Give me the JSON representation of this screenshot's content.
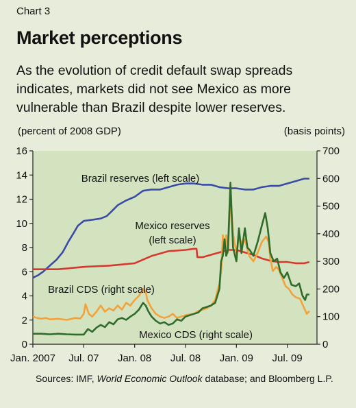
{
  "header": {
    "kicker": "Chart 3",
    "title": "Market perceptions",
    "subtitle": "As the evolution of credit default swap spreads indicates, markets did not see Mexico as more vulnerable than Brazil despite lower reserves."
  },
  "units": {
    "left": "(percent of 2008 GDP)",
    "right": "(basis points)"
  },
  "source": {
    "prefix": "Sources: IMF,",
    "italic": "World Economic Outlook",
    "suffix": "database; and Bloomberg L.P."
  },
  "colors": {
    "plot_bg": "#d3e3c0",
    "brazil_reserves": "#3a4ba6",
    "mexico_reserves": "#d7382e",
    "brazil_cds": "#f2a23a",
    "mexico_cds": "#2f6b2a",
    "axis": "#222222"
  },
  "chart_data": {
    "type": "line",
    "x_range": [
      "2007-01",
      "2009-10"
    ],
    "x_ticks": [
      {
        "label": "Jan. 2007",
        "month": 0
      },
      {
        "label": "Jul. 07",
        "month": 6
      },
      {
        "label": "Jan. 08",
        "month": 12
      },
      {
        "label": "Jul. 08",
        "month": 18
      },
      {
        "label": "Jan. 09",
        "month": 24
      },
      {
        "label": "Jul. 09",
        "month": 30
      }
    ],
    "y_left": {
      "label": "(percent of 2008 GDP)",
      "lim": [
        0,
        16
      ],
      "ticks": [
        0,
        2,
        4,
        6,
        8,
        10,
        12,
        14,
        16
      ]
    },
    "y_right": {
      "label": "(basis points)",
      "lim": [
        0,
        700
      ],
      "ticks": [
        0,
        100,
        200,
        300,
        400,
        500,
        600,
        700
      ]
    },
    "series": [
      {
        "name": "Brazil reserves (left scale)",
        "axis": "left",
        "color_key": "brazil_reserves",
        "points": [
          [
            0,
            5.5
          ],
          [
            0.6,
            5.7
          ],
          [
            1.2,
            6.0
          ],
          [
            2,
            6.5
          ],
          [
            2.8,
            7.0
          ],
          [
            3.5,
            7.6
          ],
          [
            4.2,
            8.5
          ],
          [
            4.8,
            9.2
          ],
          [
            5.3,
            9.8
          ],
          [
            6,
            10.2
          ],
          [
            7,
            10.3
          ],
          [
            8,
            10.4
          ],
          [
            8.7,
            10.6
          ],
          [
            9.3,
            11.0
          ],
          [
            10,
            11.5
          ],
          [
            11,
            11.9
          ],
          [
            12,
            12.2
          ],
          [
            13,
            12.7
          ],
          [
            14,
            12.8
          ],
          [
            15,
            12.8
          ],
          [
            16,
            13.0
          ],
          [
            17,
            13.2
          ],
          [
            18,
            13.3
          ],
          [
            19,
            13.3
          ],
          [
            20,
            13.2
          ],
          [
            21,
            13.2
          ],
          [
            22,
            13.0
          ],
          [
            23,
            12.9
          ],
          [
            24,
            12.9
          ],
          [
            25,
            12.8
          ],
          [
            26,
            12.8
          ],
          [
            27,
            13.0
          ],
          [
            28,
            13.1
          ],
          [
            29,
            13.1
          ],
          [
            30,
            13.3
          ],
          [
            31,
            13.5
          ],
          [
            32,
            13.7
          ],
          [
            32.6,
            13.7
          ]
        ]
      },
      {
        "name": "Mexico reserves (left scale)",
        "axis": "left",
        "color_key": "mexico_reserves",
        "points": [
          [
            0,
            6.2
          ],
          [
            3,
            6.2
          ],
          [
            6,
            6.4
          ],
          [
            9,
            6.5
          ],
          [
            12,
            6.7
          ],
          [
            14,
            7.3
          ],
          [
            16,
            7.7
          ],
          [
            18,
            7.8
          ],
          [
            19,
            7.9
          ],
          [
            19.3,
            7.9
          ],
          [
            19.4,
            7.2
          ],
          [
            20,
            7.2
          ],
          [
            21,
            7.4
          ],
          [
            22,
            7.6
          ],
          [
            23,
            7.8
          ],
          [
            24,
            7.8
          ],
          [
            25,
            7.6
          ],
          [
            26,
            7.4
          ],
          [
            27,
            7.1
          ],
          [
            28,
            6.9
          ],
          [
            29,
            6.8
          ],
          [
            30,
            6.8
          ],
          [
            31,
            6.7
          ],
          [
            32,
            6.7
          ],
          [
            32.6,
            6.8
          ]
        ]
      },
      {
        "name": "Brazil CDS (right scale)",
        "axis": "right",
        "color_key": "brazil_cds",
        "points": [
          [
            0,
            100
          ],
          [
            0.5,
            95
          ],
          [
            1,
            92
          ],
          [
            1.5,
            95
          ],
          [
            2,
            90
          ],
          [
            3,
            92
          ],
          [
            4,
            88
          ],
          [
            5,
            95
          ],
          [
            5.6,
            93
          ],
          [
            6,
            110
          ],
          [
            6.2,
            145
          ],
          [
            6.6,
            110
          ],
          [
            7,
            100
          ],
          [
            7.5,
            118
          ],
          [
            8,
            140
          ],
          [
            8.5,
            118
          ],
          [
            9,
            130
          ],
          [
            9.5,
            122
          ],
          [
            10,
            140
          ],
          [
            10.5,
            125
          ],
          [
            11,
            150
          ],
          [
            11.5,
            140
          ],
          [
            12,
            160
          ],
          [
            12.5,
            175
          ],
          [
            13,
            200
          ],
          [
            13.3,
            190
          ],
          [
            13.5,
            160
          ],
          [
            14,
            130
          ],
          [
            14.5,
            110
          ],
          [
            15,
            100
          ],
          [
            15.5,
            95
          ],
          [
            16,
            100
          ],
          [
            16.5,
            110
          ],
          [
            17,
            95
          ],
          [
            17.5,
            100
          ],
          [
            18,
            105
          ],
          [
            18.5,
            108
          ],
          [
            19,
            110
          ],
          [
            19.5,
            120
          ],
          [
            20,
            125
          ],
          [
            20.5,
            130
          ],
          [
            21,
            140
          ],
          [
            21.5,
            160
          ],
          [
            22,
            220
          ],
          [
            22.2,
            260
          ],
          [
            22.4,
            395
          ],
          [
            22.6,
            350
          ],
          [
            22.8,
            395
          ],
          [
            23,
            330
          ],
          [
            23.3,
            530
          ],
          [
            23.6,
            400
          ],
          [
            24,
            330
          ],
          [
            24.3,
            390
          ],
          [
            24.7,
            360
          ],
          [
            25,
            380
          ],
          [
            25.5,
            320
          ],
          [
            26,
            300
          ],
          [
            26.5,
            330
          ],
          [
            27,
            370
          ],
          [
            27.5,
            390
          ],
          [
            27.8,
            370
          ],
          [
            28,
            310
          ],
          [
            28.3,
            265
          ],
          [
            28.7,
            280
          ],
          [
            29,
            270
          ],
          [
            29.4,
            240
          ],
          [
            29.8,
            210
          ],
          [
            30.2,
            200
          ],
          [
            30.6,
            180
          ],
          [
            31,
            170
          ],
          [
            31.5,
            165
          ],
          [
            32,
            130
          ],
          [
            32.3,
            110
          ],
          [
            32.6,
            120
          ]
        ]
      },
      {
        "name": "Mexico CDS (right scale)",
        "axis": "right",
        "color_key": "mexico_cds",
        "points": [
          [
            0,
            38
          ],
          [
            1,
            38
          ],
          [
            2,
            36
          ],
          [
            3,
            38
          ],
          [
            4,
            36
          ],
          [
            5,
            35
          ],
          [
            6,
            35
          ],
          [
            6.5,
            55
          ],
          [
            7,
            45
          ],
          [
            7.5,
            60
          ],
          [
            8,
            70
          ],
          [
            8.5,
            62
          ],
          [
            9,
            80
          ],
          [
            9.5,
            72
          ],
          [
            10,
            90
          ],
          [
            10.5,
            95
          ],
          [
            11,
            88
          ],
          [
            11.5,
            100
          ],
          [
            12,
            110
          ],
          [
            12.5,
            125
          ],
          [
            13,
            150
          ],
          [
            13.3,
            140
          ],
          [
            13.6,
            120
          ],
          [
            14,
            100
          ],
          [
            14.5,
            85
          ],
          [
            15,
            75
          ],
          [
            15.5,
            80
          ],
          [
            16,
            70
          ],
          [
            16.5,
            75
          ],
          [
            17,
            90
          ],
          [
            17.5,
            85
          ],
          [
            18,
            100
          ],
          [
            18.5,
            105
          ],
          [
            19,
            110
          ],
          [
            19.5,
            115
          ],
          [
            20,
            130
          ],
          [
            20.5,
            135
          ],
          [
            21,
            140
          ],
          [
            21.5,
            150
          ],
          [
            22,
            200
          ],
          [
            22.2,
            300
          ],
          [
            22.4,
            320
          ],
          [
            22.6,
            380
          ],
          [
            22.8,
            320
          ],
          [
            23,
            340
          ],
          [
            23.3,
            585
          ],
          [
            23.6,
            350
          ],
          [
            24,
            300
          ],
          [
            24.3,
            420
          ],
          [
            24.6,
            330
          ],
          [
            25,
            420
          ],
          [
            25.3,
            350
          ],
          [
            25.6,
            340
          ],
          [
            26,
            320
          ],
          [
            26.5,
            370
          ],
          [
            27,
            430
          ],
          [
            27.4,
            475
          ],
          [
            27.7,
            420
          ],
          [
            28,
            330
          ],
          [
            28.4,
            300
          ],
          [
            28.8,
            310
          ],
          [
            29.2,
            260
          ],
          [
            29.6,
            240
          ],
          [
            30,
            260
          ],
          [
            30.5,
            215
          ],
          [
            31,
            210
          ],
          [
            31.4,
            220
          ],
          [
            31.8,
            175
          ],
          [
            32.1,
            160
          ],
          [
            32.3,
            180
          ],
          [
            32.6,
            180
          ]
        ]
      }
    ],
    "annotations": [
      {
        "text": "Brazil reserves (left scale)",
        "series": 0
      },
      {
        "text": "Mexico reserves",
        "series": 1
      },
      {
        "text": "(left scale)",
        "series": 1
      },
      {
        "text": "Brazil CDS (right scale)",
        "series": 2
      },
      {
        "text": "Mexico CDS (right scale)",
        "series": 3
      }
    ],
    "grid": false
  }
}
